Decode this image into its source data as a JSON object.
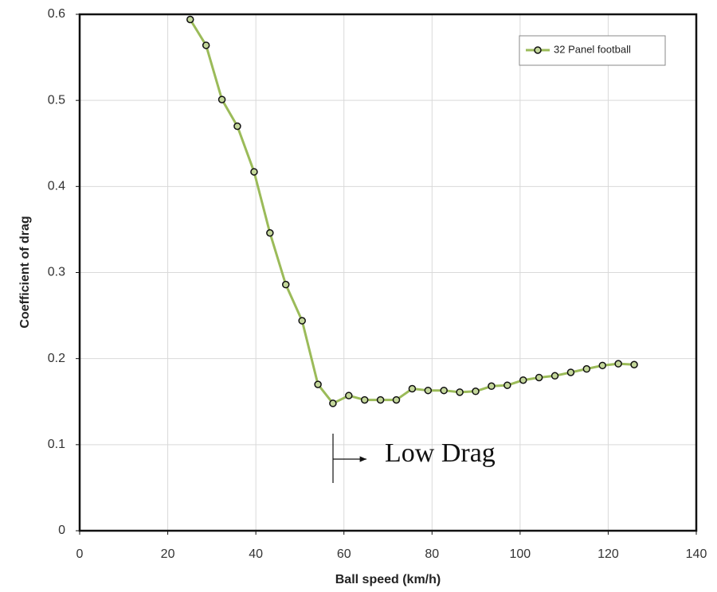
{
  "chart_data": {
    "type": "line",
    "x_label": "Ball speed (km/h)",
    "y_label": "Coefficient of drag",
    "annotation": "Low Drag",
    "x": [
      25.1,
      28.7,
      32.3,
      35.8,
      39.6,
      43.2,
      46.8,
      50.5,
      54.1,
      57.5,
      61.1,
      64.7,
      68.3,
      71.9,
      75.5,
      79.1,
      82.7,
      86.3,
      89.9,
      93.5,
      97.1,
      100.7,
      104.3,
      107.9,
      111.5,
      115.1,
      118.7,
      122.3,
      125.9
    ],
    "series": [
      {
        "name": "32 Panel football",
        "color": "#9bbb59",
        "marker_color": "#c4d79b",
        "values": [
          0.594,
          0.564,
          0.501,
          0.47,
          0.417,
          0.346,
          0.286,
          0.244,
          0.17,
          0.148,
          0.157,
          0.152,
          0.152,
          0.152,
          0.165,
          0.163,
          0.163,
          0.161,
          0.162,
          0.168,
          0.169,
          0.175,
          0.178,
          0.18,
          0.184,
          0.188,
          0.192,
          0.194,
          0.193
        ]
      }
    ],
    "xlim": [
      0,
      140
    ],
    "xticks": [
      0,
      20,
      40,
      60,
      80,
      100,
      120,
      140
    ],
    "ylim": [
      0,
      0.6
    ],
    "yticks": [
      0,
      0.1,
      0.2,
      0.3,
      0.4,
      0.5,
      0.6
    ],
    "grid": true,
    "legend": "upper right"
  }
}
